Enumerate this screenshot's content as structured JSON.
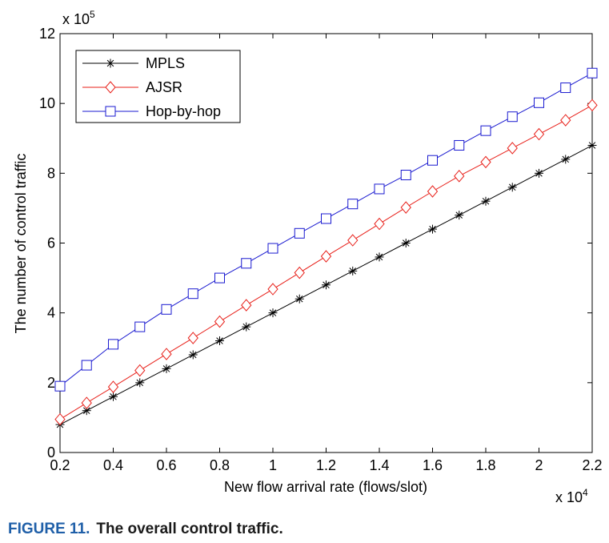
{
  "chart_data": {
    "type": "line",
    "title": "",
    "xlabel": "New flow arrival rate (flows/slot)",
    "ylabel": "The number of control traffic",
    "x_multiplier": "x 10",
    "x_exponent": "4",
    "y_multiplier": "x 10",
    "y_exponent": "5",
    "xlim": [
      0.2,
      2.2
    ],
    "ylim": [
      0,
      12
    ],
    "x_ticks": [
      0.2,
      0.4,
      0.6,
      0.8,
      1,
      1.2,
      1.4,
      1.6,
      1.8,
      2,
      2.2
    ],
    "x_tick_labels": [
      "0.2",
      "0.4",
      "0.6",
      "0.8",
      "1",
      "1.2",
      "1.4",
      "1.6",
      "1.8",
      "2",
      "2.2"
    ],
    "y_ticks": [
      0,
      2,
      4,
      6,
      8,
      10,
      12
    ],
    "y_tick_labels": [
      "0",
      "2",
      "4",
      "6",
      "8",
      "10",
      "12"
    ],
    "grid": false,
    "legend_position": "top-left",
    "x": [
      0.2,
      0.3,
      0.4,
      0.5,
      0.6,
      0.7,
      0.8,
      0.9,
      1.0,
      1.1,
      1.2,
      1.3,
      1.4,
      1.5,
      1.6,
      1.7,
      1.8,
      1.9,
      2.0,
      2.1,
      2.2
    ],
    "series": [
      {
        "name": "MPLS",
        "color": "#000000",
        "marker": "asterisk",
        "values": [
          0.8,
          1.2,
          1.6,
          2.0,
          2.4,
          2.8,
          3.2,
          3.6,
          4.0,
          4.4,
          4.8,
          5.2,
          5.6,
          6.0,
          6.4,
          6.8,
          7.2,
          7.6,
          8.0,
          8.4,
          8.8
        ]
      },
      {
        "name": "AJSR",
        "color": "#e8201a",
        "marker": "diamond",
        "values": [
          0.95,
          1.42,
          1.88,
          2.35,
          2.82,
          3.28,
          3.75,
          4.22,
          4.68,
          5.15,
          5.62,
          6.08,
          6.55,
          7.02,
          7.48,
          7.92,
          8.32,
          8.72,
          9.12,
          9.52,
          9.95
        ]
      },
      {
        "name": "Hop-by-hop",
        "color": "#1a1ad0",
        "marker": "square",
        "values": [
          1.9,
          2.5,
          3.1,
          3.6,
          4.1,
          4.55,
          5.0,
          5.42,
          5.85,
          6.28,
          6.7,
          7.12,
          7.55,
          7.95,
          8.37,
          8.8,
          9.22,
          9.62,
          10.02,
          10.45,
          10.87
        ]
      }
    ]
  },
  "caption": {
    "label": "FIGURE 11.",
    "text": "The overall control traffic."
  }
}
